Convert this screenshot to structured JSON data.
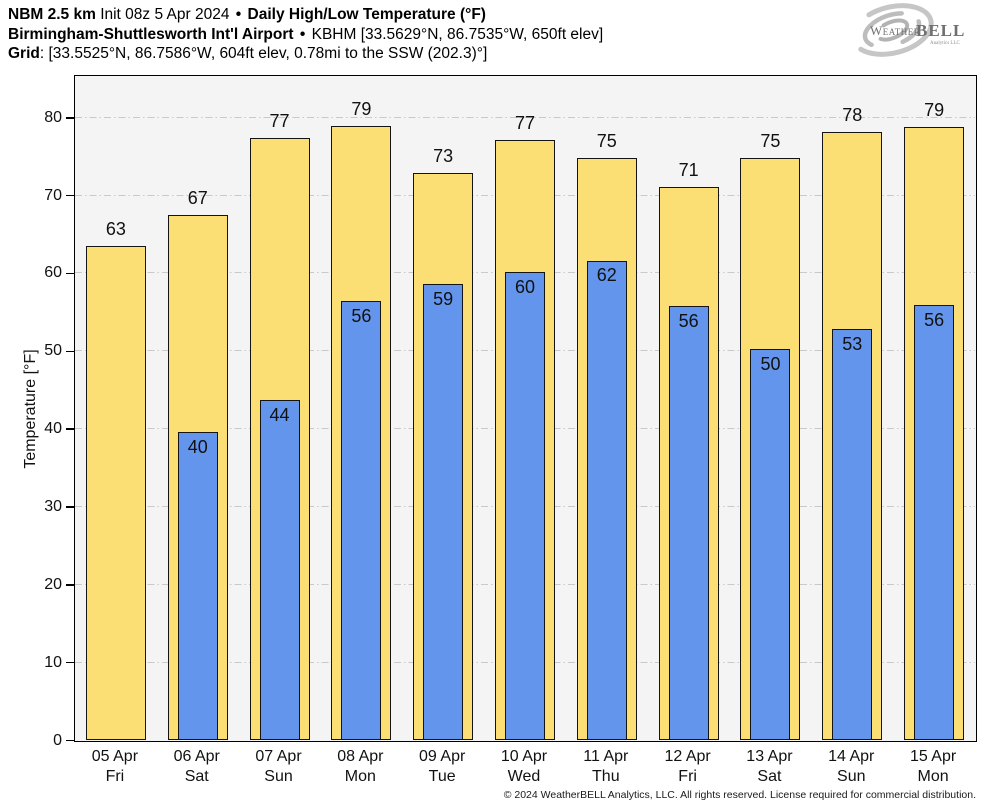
{
  "header": {
    "line1": {
      "model_bold": "NBM 2.5 km",
      "init_text": "Init 08z 5 Apr 2024",
      "separator": "•",
      "product_bold": "Daily High/Low Temperature (°F)"
    },
    "line2": {
      "station_bold": "Birmingham-Shuttlesworth Int'l Airport",
      "separator": "•",
      "station_detail": "KBHM [33.5629°N, 86.7535°W, 650ft elev]"
    },
    "line3": {
      "grid_bold": "Grid",
      "grid_detail": ": [33.5525°N, 86.7586°W, 604ft elev, 0.78mi to the SSW (202.3)°]"
    }
  },
  "logo": {
    "brand_weather": "Weather",
    "brand_bell": "BELL",
    "subtext": "Analytics LLC"
  },
  "footer": {
    "copyright": "© 2024 WeatherBELL Analytics, LLC. All rights reserved. License required for commercial distribution."
  },
  "chart_data": {
    "type": "bar",
    "title": "Daily High/Low Temperature (°F)",
    "xlabel": "",
    "ylabel": "Temperature [°F]",
    "ylim": [
      0,
      85.3
    ],
    "yticks": [
      0,
      10,
      20,
      30,
      40,
      50,
      60,
      70,
      80
    ],
    "grid": "horizontal dash-dot gridlines at each 10°F",
    "legend_position": "none",
    "plot_background": "#f4f4f4",
    "categories": [
      {
        "date": "05 Apr",
        "day": "Fri"
      },
      {
        "date": "06 Apr",
        "day": "Sat"
      },
      {
        "date": "07 Apr",
        "day": "Sun"
      },
      {
        "date": "08 Apr",
        "day": "Mon"
      },
      {
        "date": "09 Apr",
        "day": "Tue"
      },
      {
        "date": "10 Apr",
        "day": "Wed"
      },
      {
        "date": "11 Apr",
        "day": "Thu"
      },
      {
        "date": "12 Apr",
        "day": "Fri"
      },
      {
        "date": "13 Apr",
        "day": "Sat"
      },
      {
        "date": "14 Apr",
        "day": "Sun"
      },
      {
        "date": "15 Apr",
        "day": "Mon"
      }
    ],
    "series": [
      {
        "name": "Daily High",
        "color": "#fbdf75",
        "values": [
          63,
          67,
          77,
          79,
          73,
          77,
          75,
          71,
          75,
          78,
          79
        ],
        "bar_tops": [
          63.5,
          67.4,
          77.3,
          78.9,
          72.9,
          77.1,
          74.8,
          71.0,
          74.8,
          78.1,
          78.8
        ]
      },
      {
        "name": "Daily Low",
        "color": "#6495ed",
        "values": [
          null,
          40,
          44,
          56,
          59,
          60,
          62,
          56,
          50,
          53,
          56
        ],
        "bar_tops": [
          null,
          39.6,
          43.7,
          56.4,
          58.6,
          60.1,
          61.6,
          55.8,
          50.2,
          52.8,
          55.9
        ]
      }
    ]
  }
}
